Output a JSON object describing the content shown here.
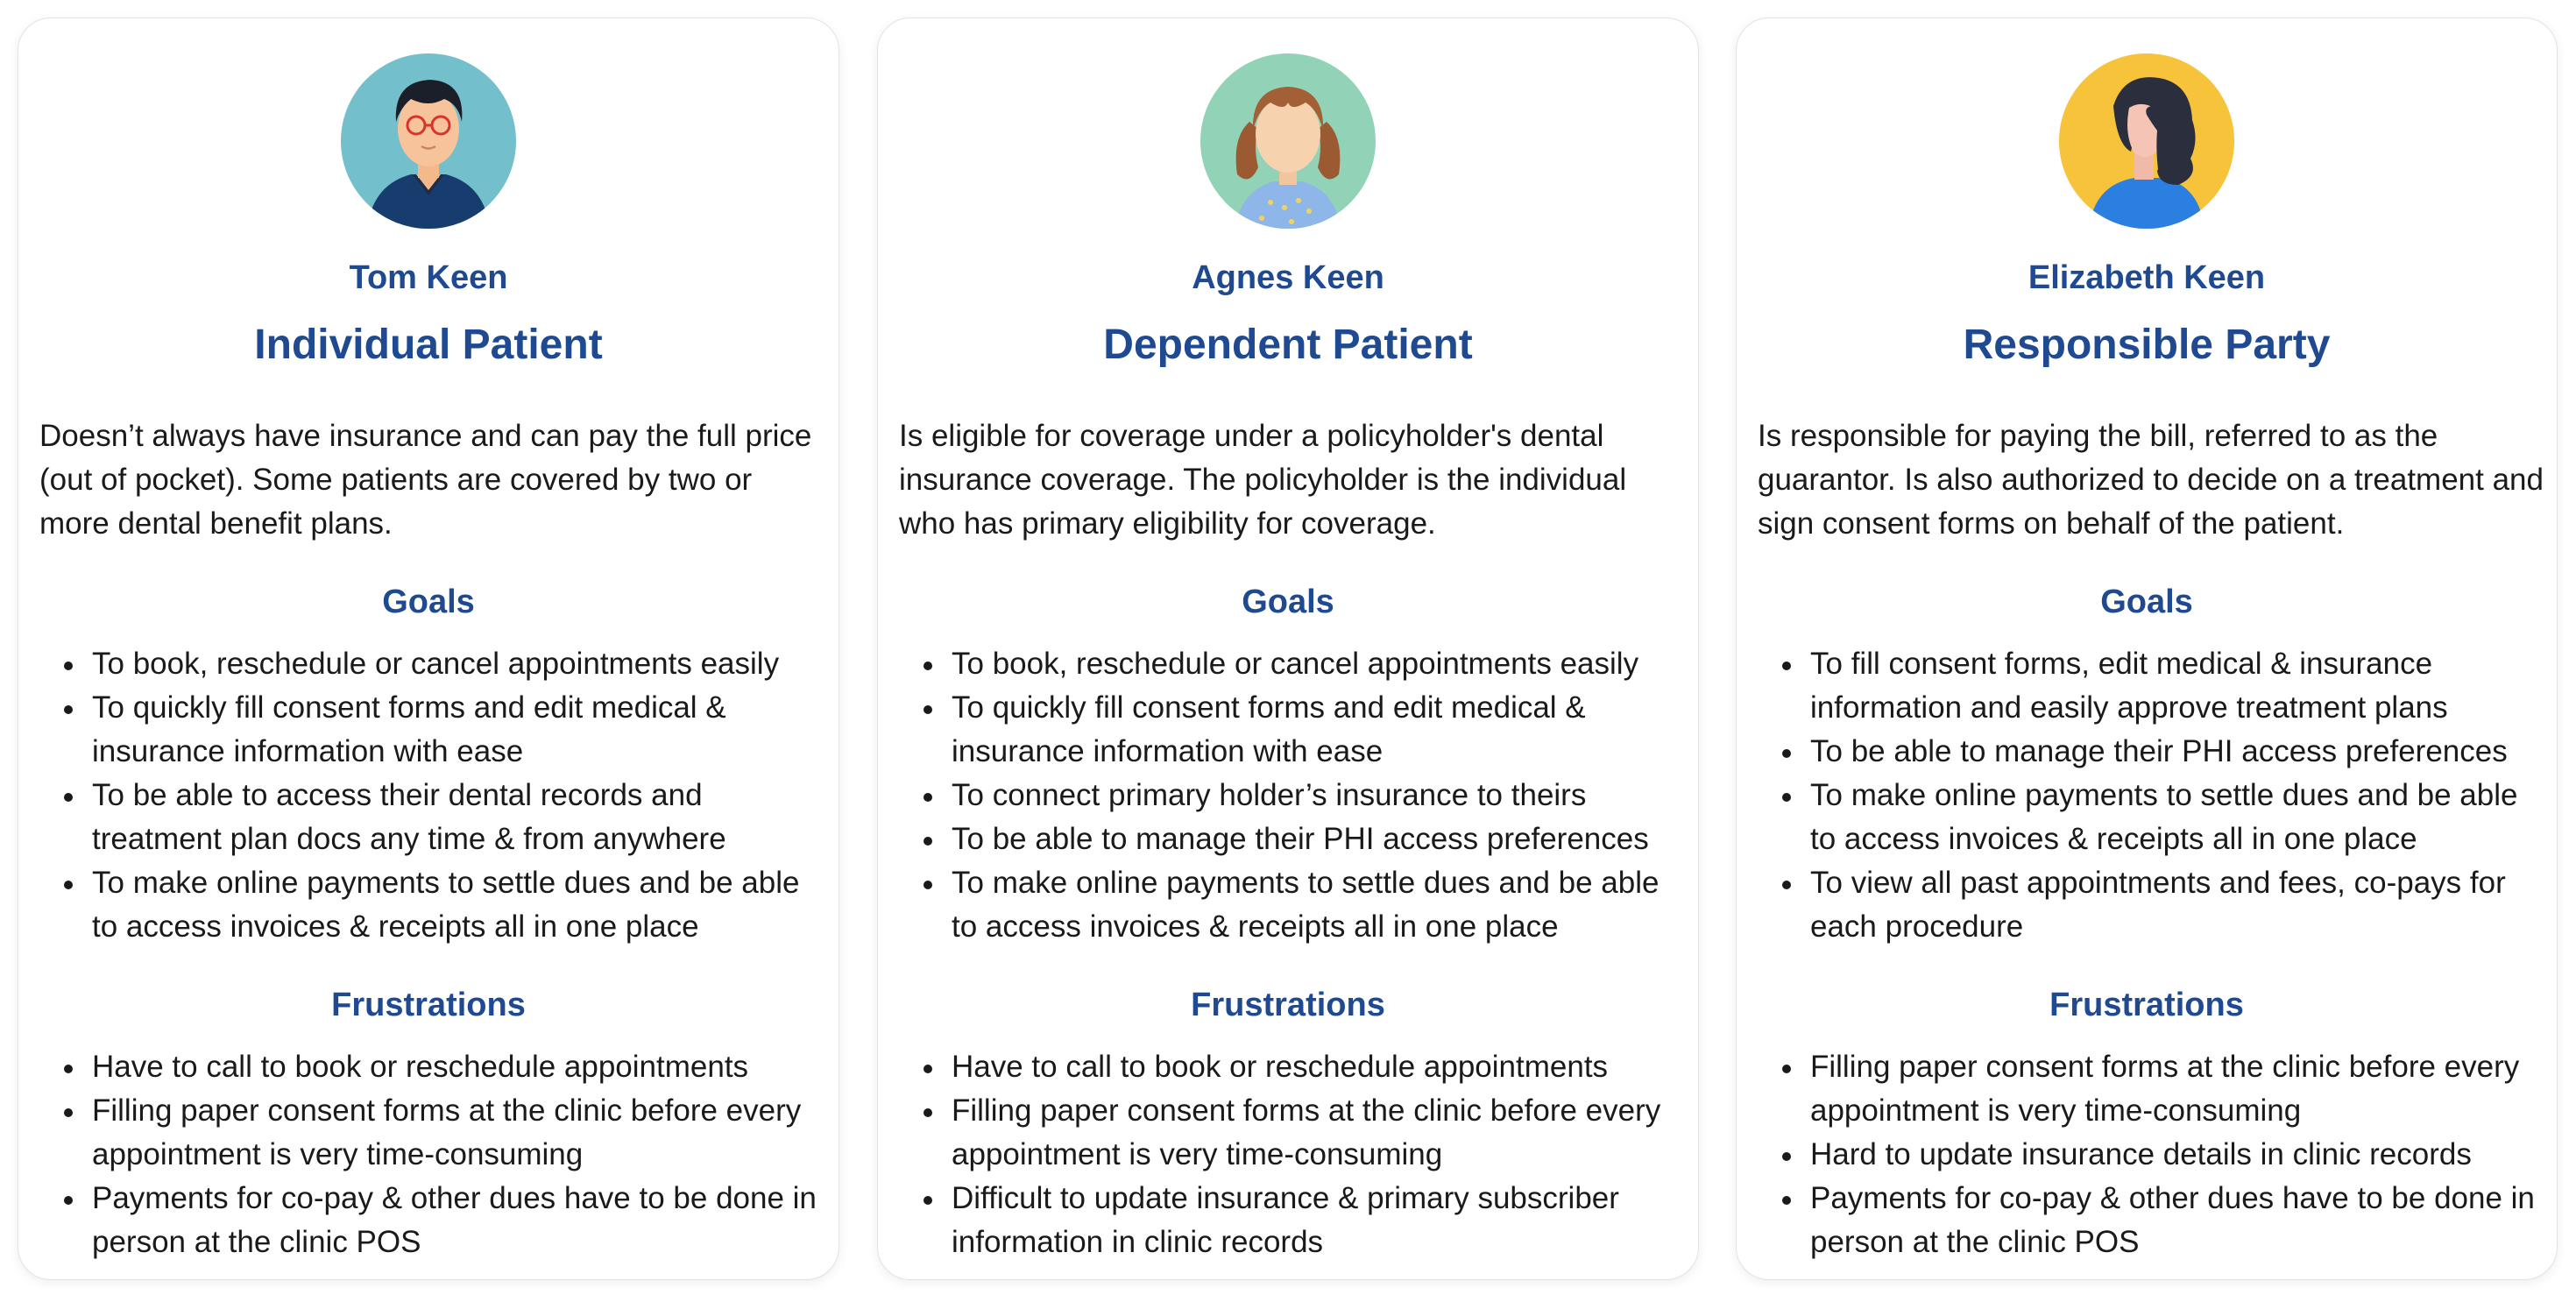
{
  "personas": [
    {
      "name": "Tom Keen",
      "role": "Individual Patient",
      "description": "Doesn’t always have insurance and can pay the full price (out of pocket). Some patients are covered by two or more dental benefit plans.",
      "goals_title": "Goals",
      "goals": [
        "To book, reschedule or cancel appointments easily",
        "To quickly fill consent forms and edit medical & insurance information with ease",
        "To be able to access their dental records and treatment plan docs any time & from anywhere",
        "To make online payments to settle dues and be able to access invoices & receipts all in one place"
      ],
      "frustrations_title": "Frustrations",
      "frustrations": [
        "Have to call to book or reschedule appointments",
        "Filling paper consent forms at the clinic before every appointment is very time-consuming",
        "Payments for co-pay & other dues have to be done in person at the clinic POS"
      ],
      "avatar_color": "#74bfcc"
    },
    {
      "name": "Agnes Keen",
      "role": "Dependent Patient",
      "description": "Is eligible for coverage under a policyholder's dental insurance coverage. The policyholder is the individual who has primary eligibility for coverage.",
      "goals_title": "Goals",
      "goals": [
        "To book, reschedule or cancel appointments easily",
        "To quickly fill consent forms and edit medical & insurance information with ease",
        "To connect primary holder’s insurance to theirs",
        "To be able to manage their PHI access preferences",
        "To make online payments to settle dues and be able to access invoices & receipts all in one place"
      ],
      "frustrations_title": "Frustrations",
      "frustrations": [
        "Have to call to book or reschedule appointments",
        "Filling paper consent forms at the clinic before every appointment is very time-consuming",
        "Difficult to update insurance & primary subscriber information in clinic records"
      ],
      "avatar_color": "#92d3b8"
    },
    {
      "name": "Elizabeth Keen",
      "role": "Responsible Party",
      "description": "Is responsible for paying the bill, referred to as the guarantor. Is also authorized to decide on a treatment and sign consent forms on behalf of the patient.",
      "goals_title": "Goals",
      "goals": [
        "To fill consent forms, edit medical & insurance information and easily approve treatment plans",
        "To be able to manage their PHI access preferences",
        "To make online payments to settle dues and be able to access invoices & receipts all in one place",
        "To view all past appointments and fees, co-pays for each procedure"
      ],
      "frustrations_title": "Frustrations",
      "frustrations": [
        "Filling paper consent forms at the clinic before every appointment is very time-consuming",
        "Hard to update insurance details in clinic records",
        "Payments for co-pay & other dues have to be done in person at the clinic POS"
      ],
      "avatar_color": "#f7c33b"
    }
  ],
  "colors": {
    "heading_blue": "#1f4a91",
    "text": "#1a1a1a",
    "card_border": "#e3e3e3"
  }
}
